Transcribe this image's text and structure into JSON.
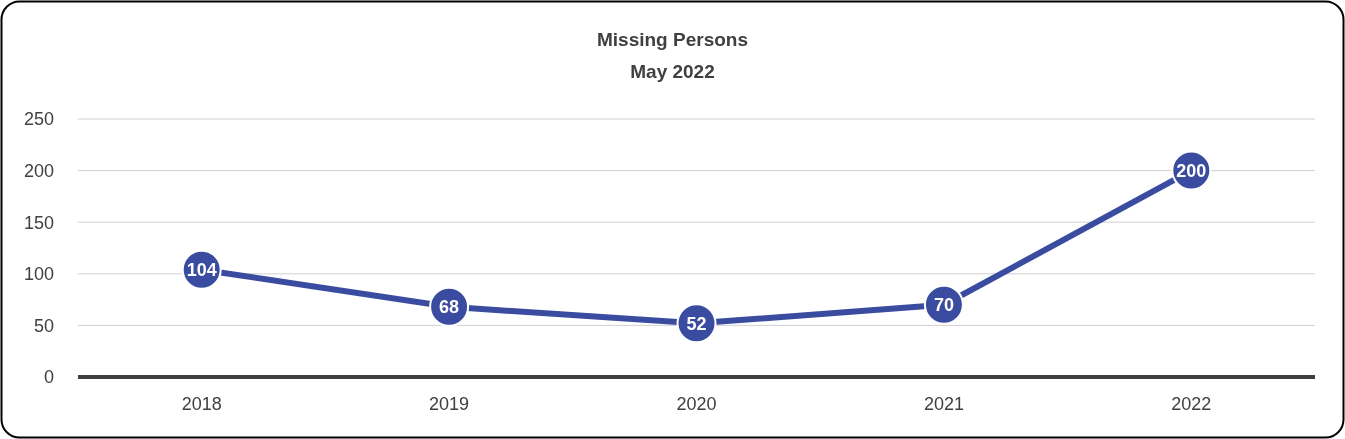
{
  "chart_data": {
    "type": "line",
    "title": "Missing Persons",
    "subtitle": "May 2022",
    "categories": [
      "2018",
      "2019",
      "2020",
      "2021",
      "2022"
    ],
    "series": [
      {
        "color": "#3a4ca0",
        "values": [
          104,
          68,
          52,
          70,
          200
        ]
      }
    ],
    "ylim": [
      0,
      250
    ],
    "yticks": [
      0,
      50,
      100,
      150,
      200,
      250
    ],
    "grid": "y",
    "marker": "circle",
    "line_style": "solid",
    "data_labels": true
  }
}
